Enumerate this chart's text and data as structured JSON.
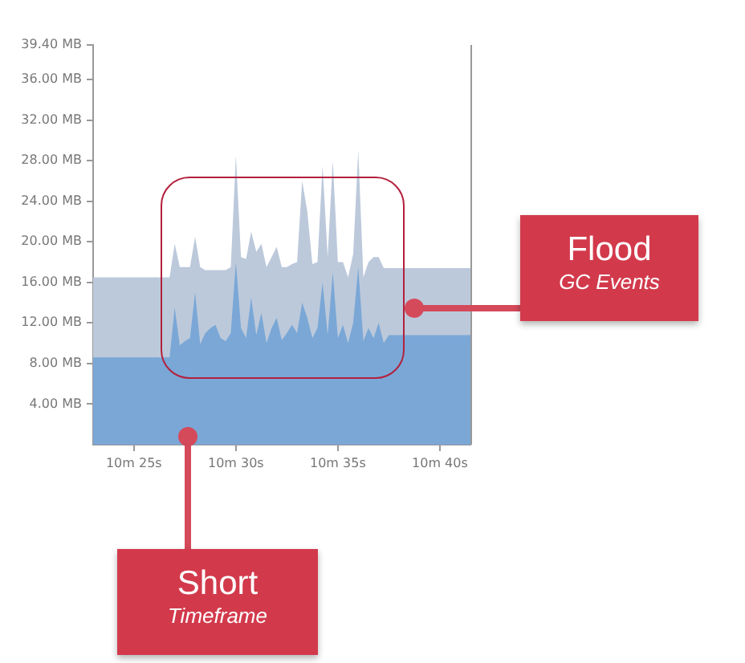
{
  "chart_data": {
    "type": "area",
    "categories": [
      null,
      null,
      null,
      null,
      null,
      null,
      null,
      null,
      "10m 25s",
      null,
      null,
      null,
      null,
      null,
      null,
      null,
      null,
      null,
      null,
      null,
      null,
      null,
      null,
      null,
      null,
      null,
      null,
      null,
      "10m 30s",
      null,
      null,
      null,
      null,
      null,
      null,
      null,
      null,
      null,
      null,
      null,
      null,
      null,
      null,
      null,
      null,
      null,
      null,
      null,
      "10m 35s",
      null,
      null,
      null,
      null,
      null,
      null,
      null,
      null,
      null,
      null,
      null,
      null,
      null,
      null,
      null,
      null,
      null,
      null,
      null,
      "10m 40s",
      null,
      null,
      null,
      null,
      null,
      null
    ],
    "series": [
      {
        "color": "#bcc9db",
        "values": [
          16.5,
          16.5,
          16.5,
          16.5,
          16.5,
          16.5,
          16.5,
          16.5,
          16.5,
          16.5,
          16.5,
          16.5,
          16.5,
          16.5,
          16.5,
          16.5,
          19.8,
          17.5,
          17.5,
          17.5,
          20.5,
          17.5,
          17.2,
          17.2,
          17.2,
          17.2,
          17.2,
          17.5,
          28.5,
          18.5,
          18.3,
          21.0,
          19.0,
          19.8,
          17.5,
          18.5,
          19.5,
          17.5,
          17.5,
          17.8,
          18.0,
          26.0,
          23.0,
          17.8,
          18.0,
          27.5,
          18.5,
          28.0,
          18.0,
          18.0,
          16.5,
          18.8,
          29.0,
          16.5,
          18.0,
          18.5,
          18.5,
          17.4,
          17.4,
          17.4,
          17.4,
          17.4,
          17.4,
          17.4,
          17.4,
          17.4,
          17.4,
          17.4,
          17.4,
          17.4,
          17.4,
          17.4,
          17.4,
          17.4,
          17.4
        ]
      },
      {
        "color": "#7aa7d6",
        "values": [
          8.6,
          8.6,
          8.6,
          8.6,
          8.6,
          8.6,
          8.6,
          8.6,
          8.6,
          8.6,
          8.6,
          8.6,
          8.6,
          8.6,
          8.6,
          8.6,
          13.5,
          9.8,
          10.2,
          10.5,
          15.0,
          9.9,
          11.0,
          11.5,
          11.8,
          10.5,
          10.2,
          11.0,
          18.0,
          11.5,
          10.5,
          14.5,
          10.8,
          13.0,
          10.0,
          11.5,
          12.5,
          10.3,
          11.0,
          11.8,
          11.0,
          14.0,
          12.5,
          10.5,
          11.5,
          16.0,
          10.8,
          17.0,
          10.5,
          11.8,
          10.0,
          12.0,
          17.5,
          10.2,
          11.5,
          10.5,
          12.0,
          10.0,
          10.8,
          10.8,
          10.8,
          10.8,
          10.8,
          10.8,
          10.8,
          10.8,
          10.8,
          10.8,
          10.8,
          10.8,
          10.8,
          10.8,
          10.8,
          10.8,
          10.8
        ]
      }
    ],
    "ylim": [
      0,
      39.4
    ],
    "yticks": [
      {
        "value": 4,
        "label": "4.00 MB"
      },
      {
        "value": 8,
        "label": "8.00 MB"
      },
      {
        "value": 12,
        "label": "12.00 MB"
      },
      {
        "value": 16,
        "label": "16.00 MB"
      },
      {
        "value": 20,
        "label": "20.00 MB"
      },
      {
        "value": 24,
        "label": "24.00 MB"
      },
      {
        "value": 28,
        "label": "28.00 MB"
      },
      {
        "value": 32,
        "label": "32.00 MB"
      },
      {
        "value": 36,
        "label": "36.00 MB"
      },
      {
        "value": 39.4,
        "label": "39.40 MB"
      }
    ],
    "annotations": [
      "Flood",
      "GC Events",
      "Short",
      "Timeframe"
    ]
  }
}
